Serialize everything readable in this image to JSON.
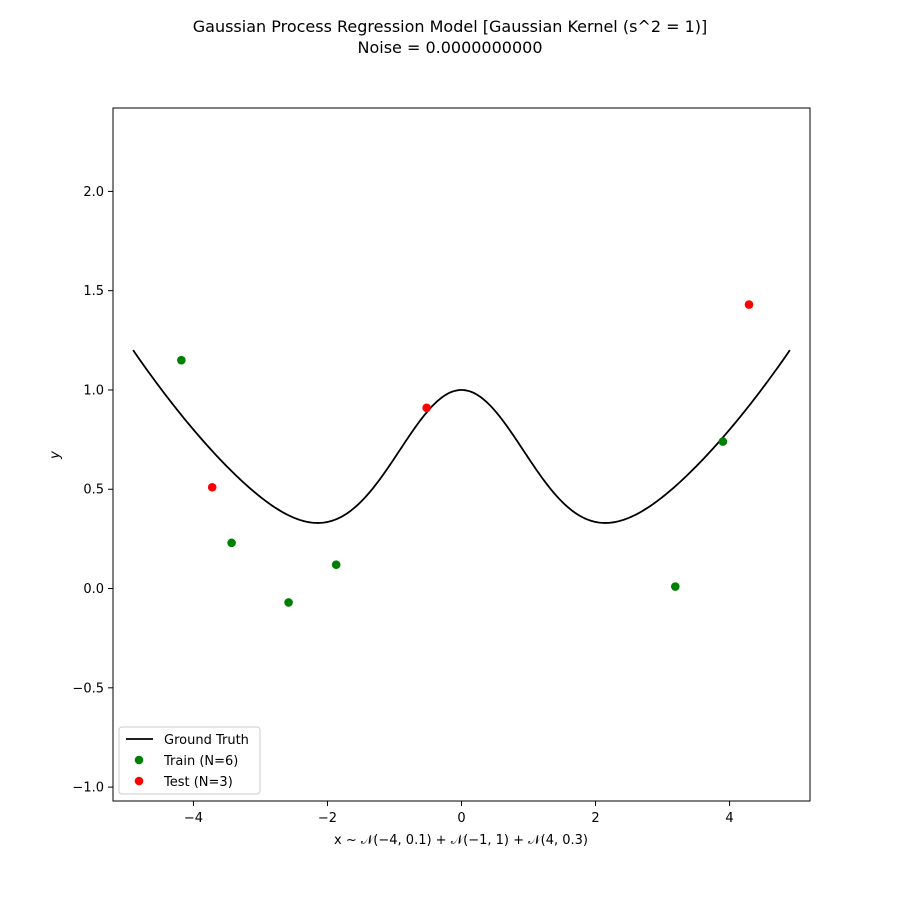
{
  "chart_data": {
    "type": "scatter",
    "title": "Gaussian Process Regression Model [Gaussian Kernel (s^2 = 1)]",
    "subtitle": "Noise = 0.0000000000",
    "xlabel": "x ~ 𝒩(−4, 0.1) + 𝒩(−1, 1) + 𝒩(4, 0.3)",
    "ylabel": "y",
    "xlim": [
      -5.2,
      5.2
    ],
    "ylim": [
      -1.07,
      2.42
    ],
    "x_ticks": [
      -4,
      -2,
      0,
      2,
      4
    ],
    "x_tick_labels": [
      "−4",
      "−2",
      "0",
      "2",
      "4"
    ],
    "y_ticks": [
      -1.0,
      -0.5,
      0.0,
      0.5,
      1.0,
      1.5,
      2.0
    ],
    "y_tick_labels": [
      "−1.0",
      "−0.5",
      "0.0",
      "0.5",
      "1.0",
      "1.5",
      "2.0"
    ],
    "grid": false,
    "legend_position": "lower-left",
    "series": [
      {
        "name": "Ground Truth",
        "kind": "line",
        "color": "#000000",
        "function": "y = exp(-x^2/2) + 0.05 * x^2",
        "x_range": [
          -4.9,
          4.9
        ]
      },
      {
        "name": "Train (N=6)",
        "kind": "scatter",
        "color": "#008000",
        "points": [
          {
            "x": -4.18,
            "y": 1.15
          },
          {
            "x": -3.43,
            "y": 0.23
          },
          {
            "x": -2.58,
            "y": -0.07
          },
          {
            "x": -1.87,
            "y": 0.12
          },
          {
            "x": 3.19,
            "y": 0.01
          },
          {
            "x": 3.9,
            "y": 0.74
          }
        ]
      },
      {
        "name": "Test (N=3)",
        "kind": "scatter",
        "color": "#ff0000",
        "points": [
          {
            "x": -3.72,
            "y": 0.51
          },
          {
            "x": -0.52,
            "y": 0.91
          },
          {
            "x": 4.29,
            "y": 1.43
          }
        ]
      }
    ]
  }
}
